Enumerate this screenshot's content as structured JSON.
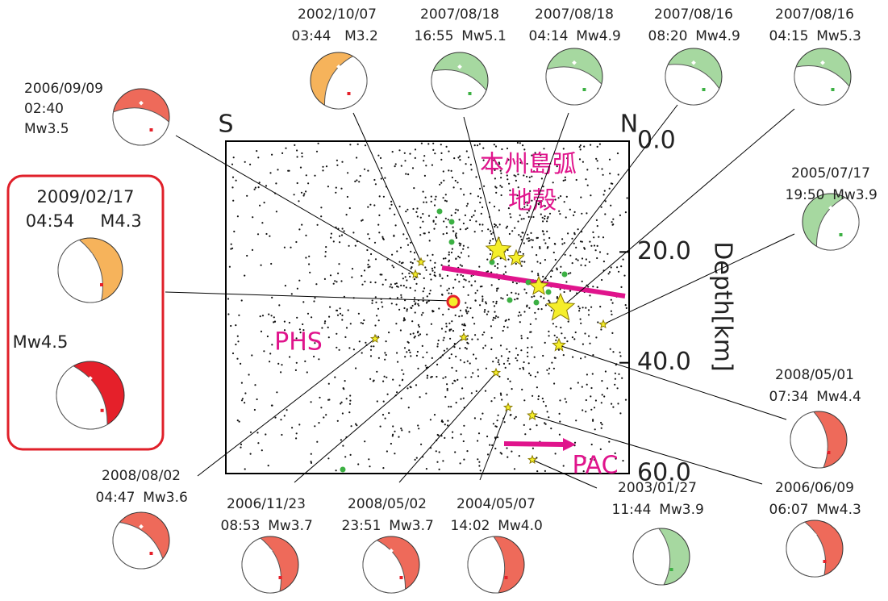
{
  "axis": {
    "left_end": "S",
    "right_end": "N",
    "label": "Depth[km]",
    "ticks": [
      {
        "value": 0,
        "label": "0.0"
      },
      {
        "value": 20,
        "label": "20.0"
      },
      {
        "value": 40,
        "label": "40.0"
      },
      {
        "value": 60,
        "label": "60.0"
      }
    ],
    "range": [
      0,
      60
    ]
  },
  "regions": {
    "arc_crust_1": "本州島弧",
    "arc_crust_2": "地殻",
    "phs": "PHS",
    "pac": "PAC"
  },
  "main_event": {
    "date": "2009/02/17",
    "time": "04:54",
    "magnitude": "M4.3",
    "moment_magnitude": "Mw4.5"
  },
  "events": [
    {
      "date": "2002/10/07",
      "time": "03:44",
      "magnitude": "M3.2"
    },
    {
      "date": "2007/08/18",
      "time": "16:55",
      "magnitude": "Mw5.1"
    },
    {
      "date": "2007/08/18",
      "time": "04:14",
      "magnitude": "Mw4.9"
    },
    {
      "date": "2007/08/16",
      "time": "08:20",
      "magnitude": "Mw4.9"
    },
    {
      "date": "2007/08/16",
      "time": "04:15",
      "magnitude": "Mw5.3"
    },
    {
      "date": "2006/09/09",
      "time": "02:40",
      "magnitude": "Mw3.5"
    },
    {
      "date": "2005/07/17",
      "time": "19:50",
      "magnitude": "Mw3.9"
    },
    {
      "date": "2008/05/01",
      "time": "07:34",
      "magnitude": "Mw4.4"
    },
    {
      "date": "2006/06/09",
      "time": "06:07",
      "magnitude": "Mw4.3"
    },
    {
      "date": "2008/08/02",
      "time": "04:47",
      "magnitude": "Mw3.6"
    },
    {
      "date": "2006/11/23",
      "time": "08:53",
      "magnitude": "Mw3.7"
    },
    {
      "date": "2008/05/02",
      "time": "23:51",
      "magnitude": "Mw3.7"
    },
    {
      "date": "2004/05/07",
      "time": "14:02",
      "magnitude": "Mw4.0"
    },
    {
      "date": "2003/01/27",
      "time": "11:44",
      "magnitude": "Mw3.9"
    }
  ]
}
